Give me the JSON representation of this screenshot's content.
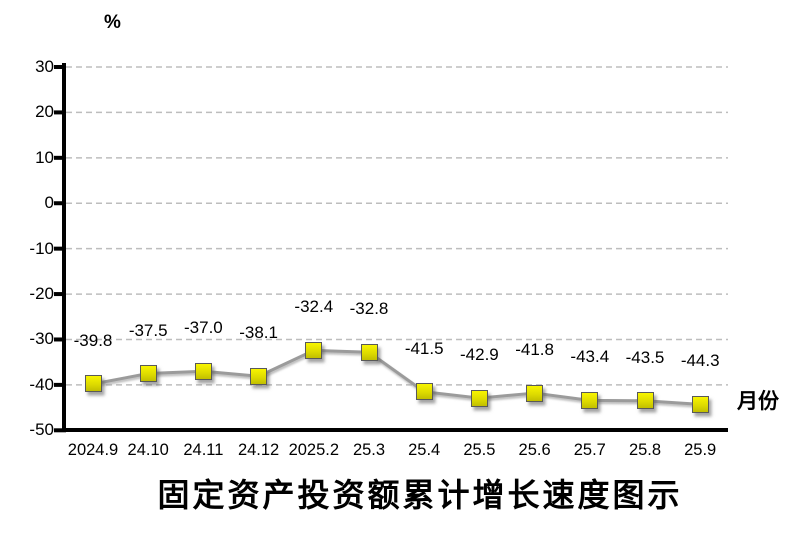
{
  "chart_data": {
    "type": "line",
    "categories": [
      "2024.9",
      "24.10",
      "24.11",
      "24.12",
      "2025.2",
      "25.3",
      "25.4",
      "25.5",
      "25.6",
      "25.7",
      "25.8",
      "25.9"
    ],
    "values": [
      -39.8,
      -37.5,
      -37.0,
      -38.1,
      -32.4,
      -32.8,
      -41.5,
      -42.9,
      -41.8,
      -43.4,
      -43.5,
      -44.3
    ],
    "data_labels": [
      "-39.8",
      "-37.5",
      "-37.0",
      "-38.1",
      "-32.4",
      "-32.8",
      "-41.5",
      "-42.9",
      "-41.8",
      "-43.4",
      "-43.5",
      "-44.3"
    ],
    "title": "固定资产投资额累计增长速度图示",
    "xlabel": "月份",
    "ylabel": "%",
    "ylim": [
      -50,
      30
    ],
    "yticks": [
      30,
      20,
      10,
      0,
      -10,
      -20,
      -30,
      -40,
      -50
    ],
    "grid": "horizontal-dashed",
    "legend": "none",
    "marker": "square",
    "marker_color": "#e0dd00",
    "marker_border_color": "#595959",
    "line_color": "#9b9b9b",
    "gridline_color": "#bdbdbd",
    "axis_color": "#000000"
  }
}
